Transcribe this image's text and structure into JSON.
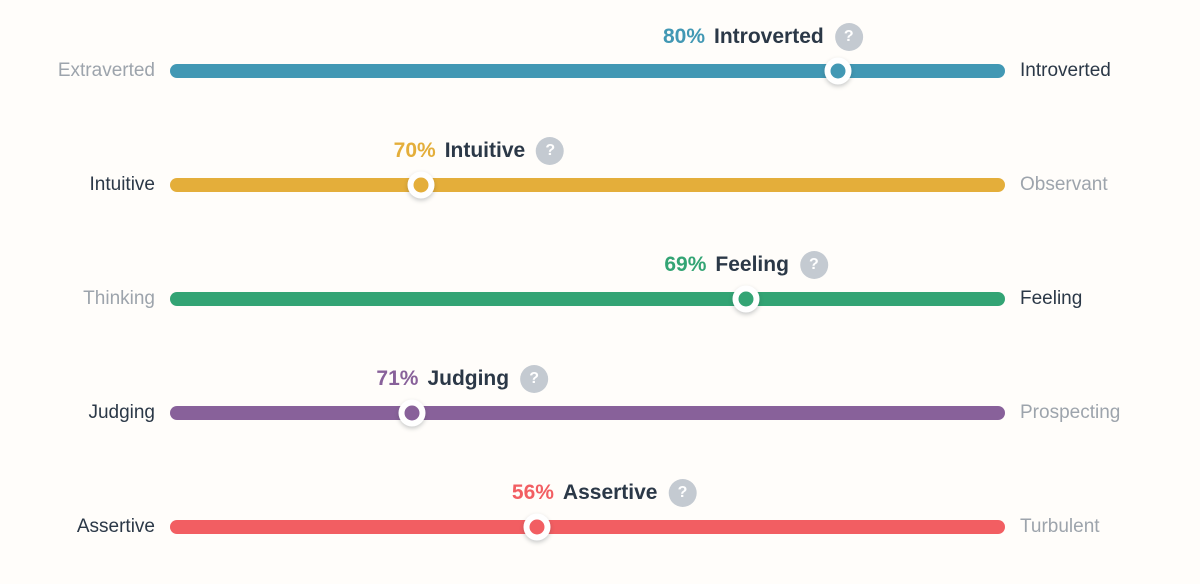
{
  "page": {
    "background": "#fffdfa"
  },
  "colors": {
    "winning_label": "#2b3847",
    "losing_label": "#9da4ac",
    "help_badge_bg": "#c4cad1",
    "help_badge_glyph": "#ffffff"
  },
  "help_badge": {
    "glyph": "?"
  },
  "chart_data": {
    "type": "bar",
    "title": "",
    "xlabel": "",
    "ylabel": "",
    "xlim": [
      0,
      100
    ],
    "grid": false,
    "legend": "none",
    "series": [
      {
        "left_label": "Extraverted",
        "right_label": "Introverted",
        "percent": 80,
        "percent_label": "80%",
        "winner": "Introverted",
        "winner_side": "right",
        "color": "#4298b4",
        "caption_center_pct": 71
      },
      {
        "left_label": "Intuitive",
        "right_label": "Observant",
        "percent": 70,
        "percent_label": "70%",
        "winner": "Intuitive",
        "winner_side": "left",
        "color": "#e4ae3a",
        "caption_center_pct": 37
      },
      {
        "left_label": "Thinking",
        "right_label": "Feeling",
        "percent": 69,
        "percent_label": "69%",
        "winner": "Feeling",
        "winner_side": "right",
        "color": "#33a474",
        "caption_center_pct": 69
      },
      {
        "left_label": "Judging",
        "right_label": "Prospecting",
        "percent": 71,
        "percent_label": "71%",
        "winner": "Judging",
        "winner_side": "left",
        "color": "#88619a",
        "caption_center_pct": 35
      },
      {
        "left_label": "Assertive",
        "right_label": "Turbulent",
        "percent": 56,
        "percent_label": "56%",
        "winner": "Assertive",
        "winner_side": "left",
        "color": "#f25e62",
        "caption_center_pct": 52
      }
    ]
  }
}
